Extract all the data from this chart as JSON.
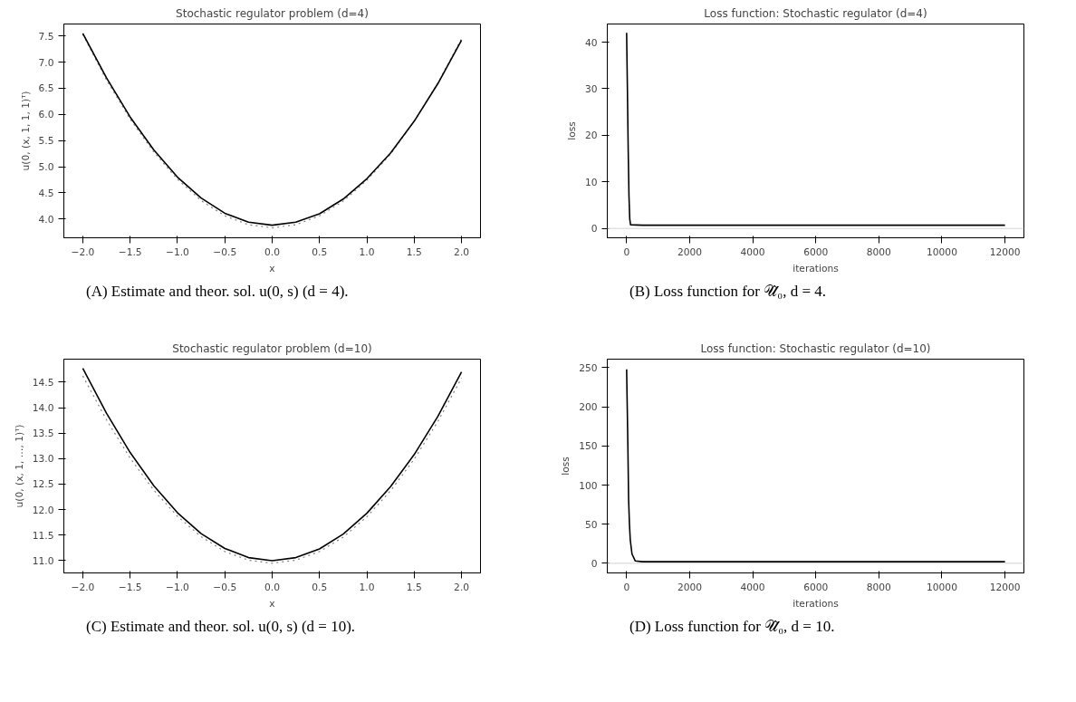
{
  "chart_data": [
    {
      "type": "line",
      "title": "Stochastic regulator problem (d=4)",
      "xlabel": "x",
      "ylabel": "u(0, (x, 1, 1, 1)ᵀ)",
      "annotations": [
        "(A) Estimate and theor. sol. u(0, s) (d = 4)."
      ],
      "xlim": [
        -2.2,
        2.2
      ],
      "ylim": [
        3.64,
        7.73
      ],
      "xticks": [
        {
          "value": -2,
          "label": "−2.0"
        },
        {
          "value": -1.5,
          "label": "−1.5"
        },
        {
          "value": -1,
          "label": "−1.0"
        },
        {
          "value": -0.5,
          "label": "−0.5"
        },
        {
          "value": 0,
          "label": "0.0"
        },
        {
          "value": 0.5,
          "label": "0.5"
        },
        {
          "value": 1,
          "label": "1.0"
        },
        {
          "value": 1.5,
          "label": "1.5"
        },
        {
          "value": 2,
          "label": "2.0"
        }
      ],
      "yticks": [
        {
          "value": 4,
          "label": "4.0"
        },
        4.5,
        {
          "value": 5,
          "label": "5.0"
        },
        5.5,
        {
          "value": 6,
          "label": "6.0"
        },
        6.5,
        {
          "value": 7,
          "label": "7.0"
        },
        7.5
      ],
      "grid": false,
      "series": [
        {
          "color": "#808080",
          "line_style": "dotted",
          "x": [
            -2,
            -1.75,
            -1.5,
            -1.25,
            -1,
            -0.75,
            -0.5,
            -0.25,
            0,
            0.25,
            0.5,
            0.75,
            1,
            1.25,
            1.5,
            1.75,
            2
          ],
          "values": [
            7.53,
            6.66,
            5.91,
            5.28,
            4.76,
            4.35,
            4.06,
            3.89,
            3.83,
            3.89,
            4.06,
            4.34,
            4.74,
            5.24,
            5.87,
            6.6,
            7.45
          ]
        },
        {
          "color": "#000000",
          "line_style": "solid",
          "x": [
            -2,
            -1.75,
            -1.5,
            -1.25,
            -1,
            -0.75,
            -0.5,
            -0.25,
            0,
            0.25,
            0.5,
            0.75,
            1,
            1.25,
            1.5,
            1.75,
            2
          ],
          "values": [
            7.55,
            6.7,
            5.95,
            5.32,
            4.8,
            4.4,
            4.11,
            3.94,
            3.88,
            3.94,
            4.1,
            4.38,
            4.77,
            5.26,
            5.87,
            6.59,
            7.42
          ]
        }
      ]
    },
    {
      "type": "line",
      "title": "Loss function: Stochastic regulator (d=4)",
      "xlabel": "iterations",
      "ylabel": "loss",
      "annotations": [
        "(B) Loss function for 𝒰̂₀, d = 4."
      ],
      "xlim": [
        -613,
        12600
      ],
      "ylim": [
        -2,
        43.9
      ],
      "xticks": [
        0,
        2000,
        4000,
        6000,
        8000,
        10000,
        12000
      ],
      "yticks": [
        0,
        10,
        20,
        30,
        40
      ],
      "grid": false,
      "ref_lines": [
        {
          "axis": "y",
          "value": 0,
          "color": "#d3d3d3"
        }
      ],
      "series": [
        {
          "color": "#000000",
          "line_style": "solid",
          "x": [
            0,
            25,
            50,
            75,
            100,
            125,
            500,
            2000,
            4000,
            6000,
            8000,
            10000,
            12000
          ],
          "values": [
            42,
            30,
            17,
            7,
            2,
            0.8,
            0.7,
            0.7,
            0.7,
            0.7,
            0.7,
            0.7,
            0.7
          ]
        }
      ]
    },
    {
      "type": "line",
      "title": "Stochastic regulator problem (d=10)",
      "xlabel": "x",
      "ylabel": "u(0, (x, 1, …, 1)ᵀ)",
      "annotations": [
        "(C) Estimate and theor. sol. u(0, s) (d = 10)."
      ],
      "xlim": [
        -2.2,
        2.2
      ],
      "ylim": [
        10.76,
        14.95
      ],
      "xticks": [
        {
          "value": -2,
          "label": "−2.0"
        },
        {
          "value": -1.5,
          "label": "−1.5"
        },
        {
          "value": -1,
          "label": "−1.0"
        },
        {
          "value": -0.5,
          "label": "−0.5"
        },
        {
          "value": 0,
          "label": "0.0"
        },
        {
          "value": 0.5,
          "label": "0.5"
        },
        {
          "value": 1,
          "label": "1.0"
        },
        {
          "value": 1.5,
          "label": "1.5"
        },
        {
          "value": 2,
          "label": "2.0"
        }
      ],
      "yticks": [
        {
          "value": 11,
          "label": "11.0"
        },
        11.5,
        {
          "value": 12,
          "label": "12.0"
        },
        12.5,
        {
          "value": 13,
          "label": "13.0"
        },
        13.5,
        {
          "value": 14,
          "label": "14.0"
        },
        14.5
      ],
      "grid": false,
      "series": [
        {
          "color": "#808080",
          "line_style": "dotted",
          "x": [
            -2,
            -1.75,
            -1.5,
            -1.25,
            -1,
            -0.75,
            -0.5,
            -0.25,
            0,
            0.25,
            0.5,
            0.75,
            1,
            1.25,
            1.5,
            1.75,
            2
          ],
          "values": [
            14.62,
            13.76,
            13.01,
            12.38,
            11.87,
            11.47,
            11.18,
            11.01,
            10.95,
            11.01,
            11.18,
            11.46,
            11.86,
            12.37,
            12.99,
            13.73,
            14.58
          ]
        },
        {
          "color": "#000000",
          "line_style": "solid",
          "x": [
            -2,
            -1.75,
            -1.5,
            -1.25,
            -1,
            -0.75,
            -0.5,
            -0.25,
            0,
            0.25,
            0.5,
            0.75,
            1,
            1.25,
            1.5,
            1.75,
            2
          ],
          "values": [
            14.77,
            13.89,
            13.12,
            12.47,
            11.94,
            11.53,
            11.24,
            11.06,
            11.0,
            11.06,
            11.23,
            11.52,
            11.93,
            12.45,
            13.08,
            13.83,
            14.7
          ]
        }
      ]
    },
    {
      "type": "line",
      "title": "Loss function: Stochastic regulator (d=10)",
      "xlabel": "iterations",
      "ylabel": "loss",
      "annotations": [
        "(D) Loss function for 𝒰̂₀, d = 10."
      ],
      "xlim": [
        -613,
        12600
      ],
      "ylim": [
        -12.3,
        261
      ],
      "xticks": [
        0,
        2000,
        4000,
        6000,
        8000,
        10000,
        12000
      ],
      "yticks": [
        0,
        50,
        100,
        150,
        200,
        250
      ],
      "grid": false,
      "ref_lines": [
        {
          "axis": "y",
          "value": 0,
          "color": "#d3d3d3"
        }
      ],
      "series": [
        {
          "color": "#000000",
          "line_style": "solid",
          "x": [
            0,
            20,
            40,
            63,
            90,
            116,
            170,
            275,
            500,
            2000,
            4000,
            6000,
            8000,
            10000,
            12000
          ],
          "values": [
            248,
            200,
            150,
            82,
            50,
            30,
            12,
            3,
            2,
            2,
            2,
            2,
            2,
            2,
            2
          ]
        }
      ]
    }
  ]
}
